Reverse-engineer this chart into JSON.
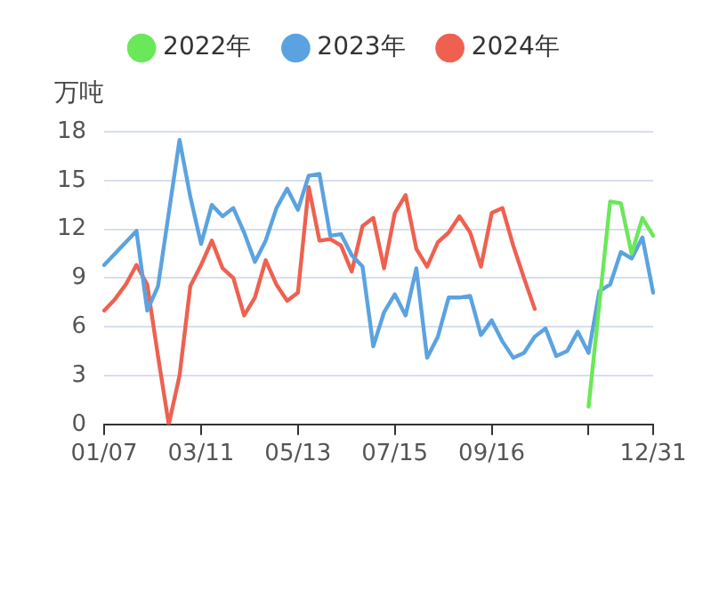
{
  "chart_data": {
    "type": "line",
    "ylabel": "万吨",
    "categories": [
      "01/07",
      null,
      null,
      null,
      null,
      null,
      null,
      null,
      null,
      "03/11",
      null,
      null,
      null,
      null,
      null,
      null,
      null,
      null,
      "05/13",
      null,
      null,
      null,
      null,
      null,
      null,
      null,
      null,
      "07/15",
      null,
      null,
      null,
      null,
      null,
      null,
      null,
      null,
      "09/16",
      null,
      null,
      null,
      null,
      null,
      null,
      null,
      null,
      null,
      null,
      null,
      null,
      null,
      null,
      "12/31"
    ],
    "series": [
      {
        "name": "2022年",
        "color": "#6be85a",
        "values": [
          null,
          null,
          null,
          null,
          null,
          null,
          null,
          null,
          null,
          null,
          null,
          null,
          null,
          null,
          null,
          null,
          null,
          null,
          null,
          null,
          null,
          null,
          null,
          null,
          null,
          null,
          null,
          null,
          null,
          null,
          null,
          null,
          null,
          null,
          null,
          null,
          null,
          null,
          null,
          null,
          null,
          null,
          null,
          null,
          null,
          1.1,
          7.4,
          13.7,
          13.6,
          10.5,
          12.7,
          11.6
        ]
      },
      {
        "name": "2023年",
        "color": "#5ba3e0",
        "values": [
          9.8,
          10.5,
          11.2,
          11.9,
          7.0,
          8.5,
          13.0,
          17.5,
          14.0,
          11.1,
          13.5,
          12.8,
          13.3,
          11.8,
          10.0,
          11.3,
          13.3,
          14.5,
          13.2,
          15.3,
          15.4,
          11.6,
          11.7,
          10.4,
          9.7,
          4.8,
          6.9,
          8.0,
          6.7,
          9.6,
          4.1,
          5.4,
          7.8,
          7.8,
          7.9,
          5.5,
          6.4,
          5.1,
          4.1,
          4.4,
          5.4,
          5.9,
          4.2,
          4.5,
          5.7,
          4.4,
          8.2,
          8.6,
          10.6,
          10.2,
          11.5,
          8.1
        ]
      },
      {
        "name": "2024年",
        "color": "#ee6150",
        "values": [
          7.0,
          7.7,
          8.6,
          9.8,
          8.6,
          4.2,
          0,
          3.0,
          8.5,
          9.8,
          11.3,
          9.6,
          9.0,
          6.7,
          7.8,
          10.1,
          8.6,
          7.6,
          8.1,
          14.6,
          11.3,
          11.4,
          11.0,
          9.4,
          12.2,
          12.7,
          9.6,
          13.0,
          14.1,
          10.8,
          9.7,
          11.2,
          11.8,
          12.8,
          11.8,
          9.7,
          13.0,
          13.3,
          11.0,
          9.0,
          7.1,
          null,
          null,
          null,
          null,
          null,
          null,
          null,
          null,
          null,
          null,
          null
        ]
      }
    ],
    "ylim": [
      0,
      18
    ],
    "yticks": [
      0,
      3,
      6,
      9,
      12,
      15,
      18
    ],
    "grid": "y",
    "legend": "top",
    "marker": "none",
    "line_style": "solid"
  }
}
